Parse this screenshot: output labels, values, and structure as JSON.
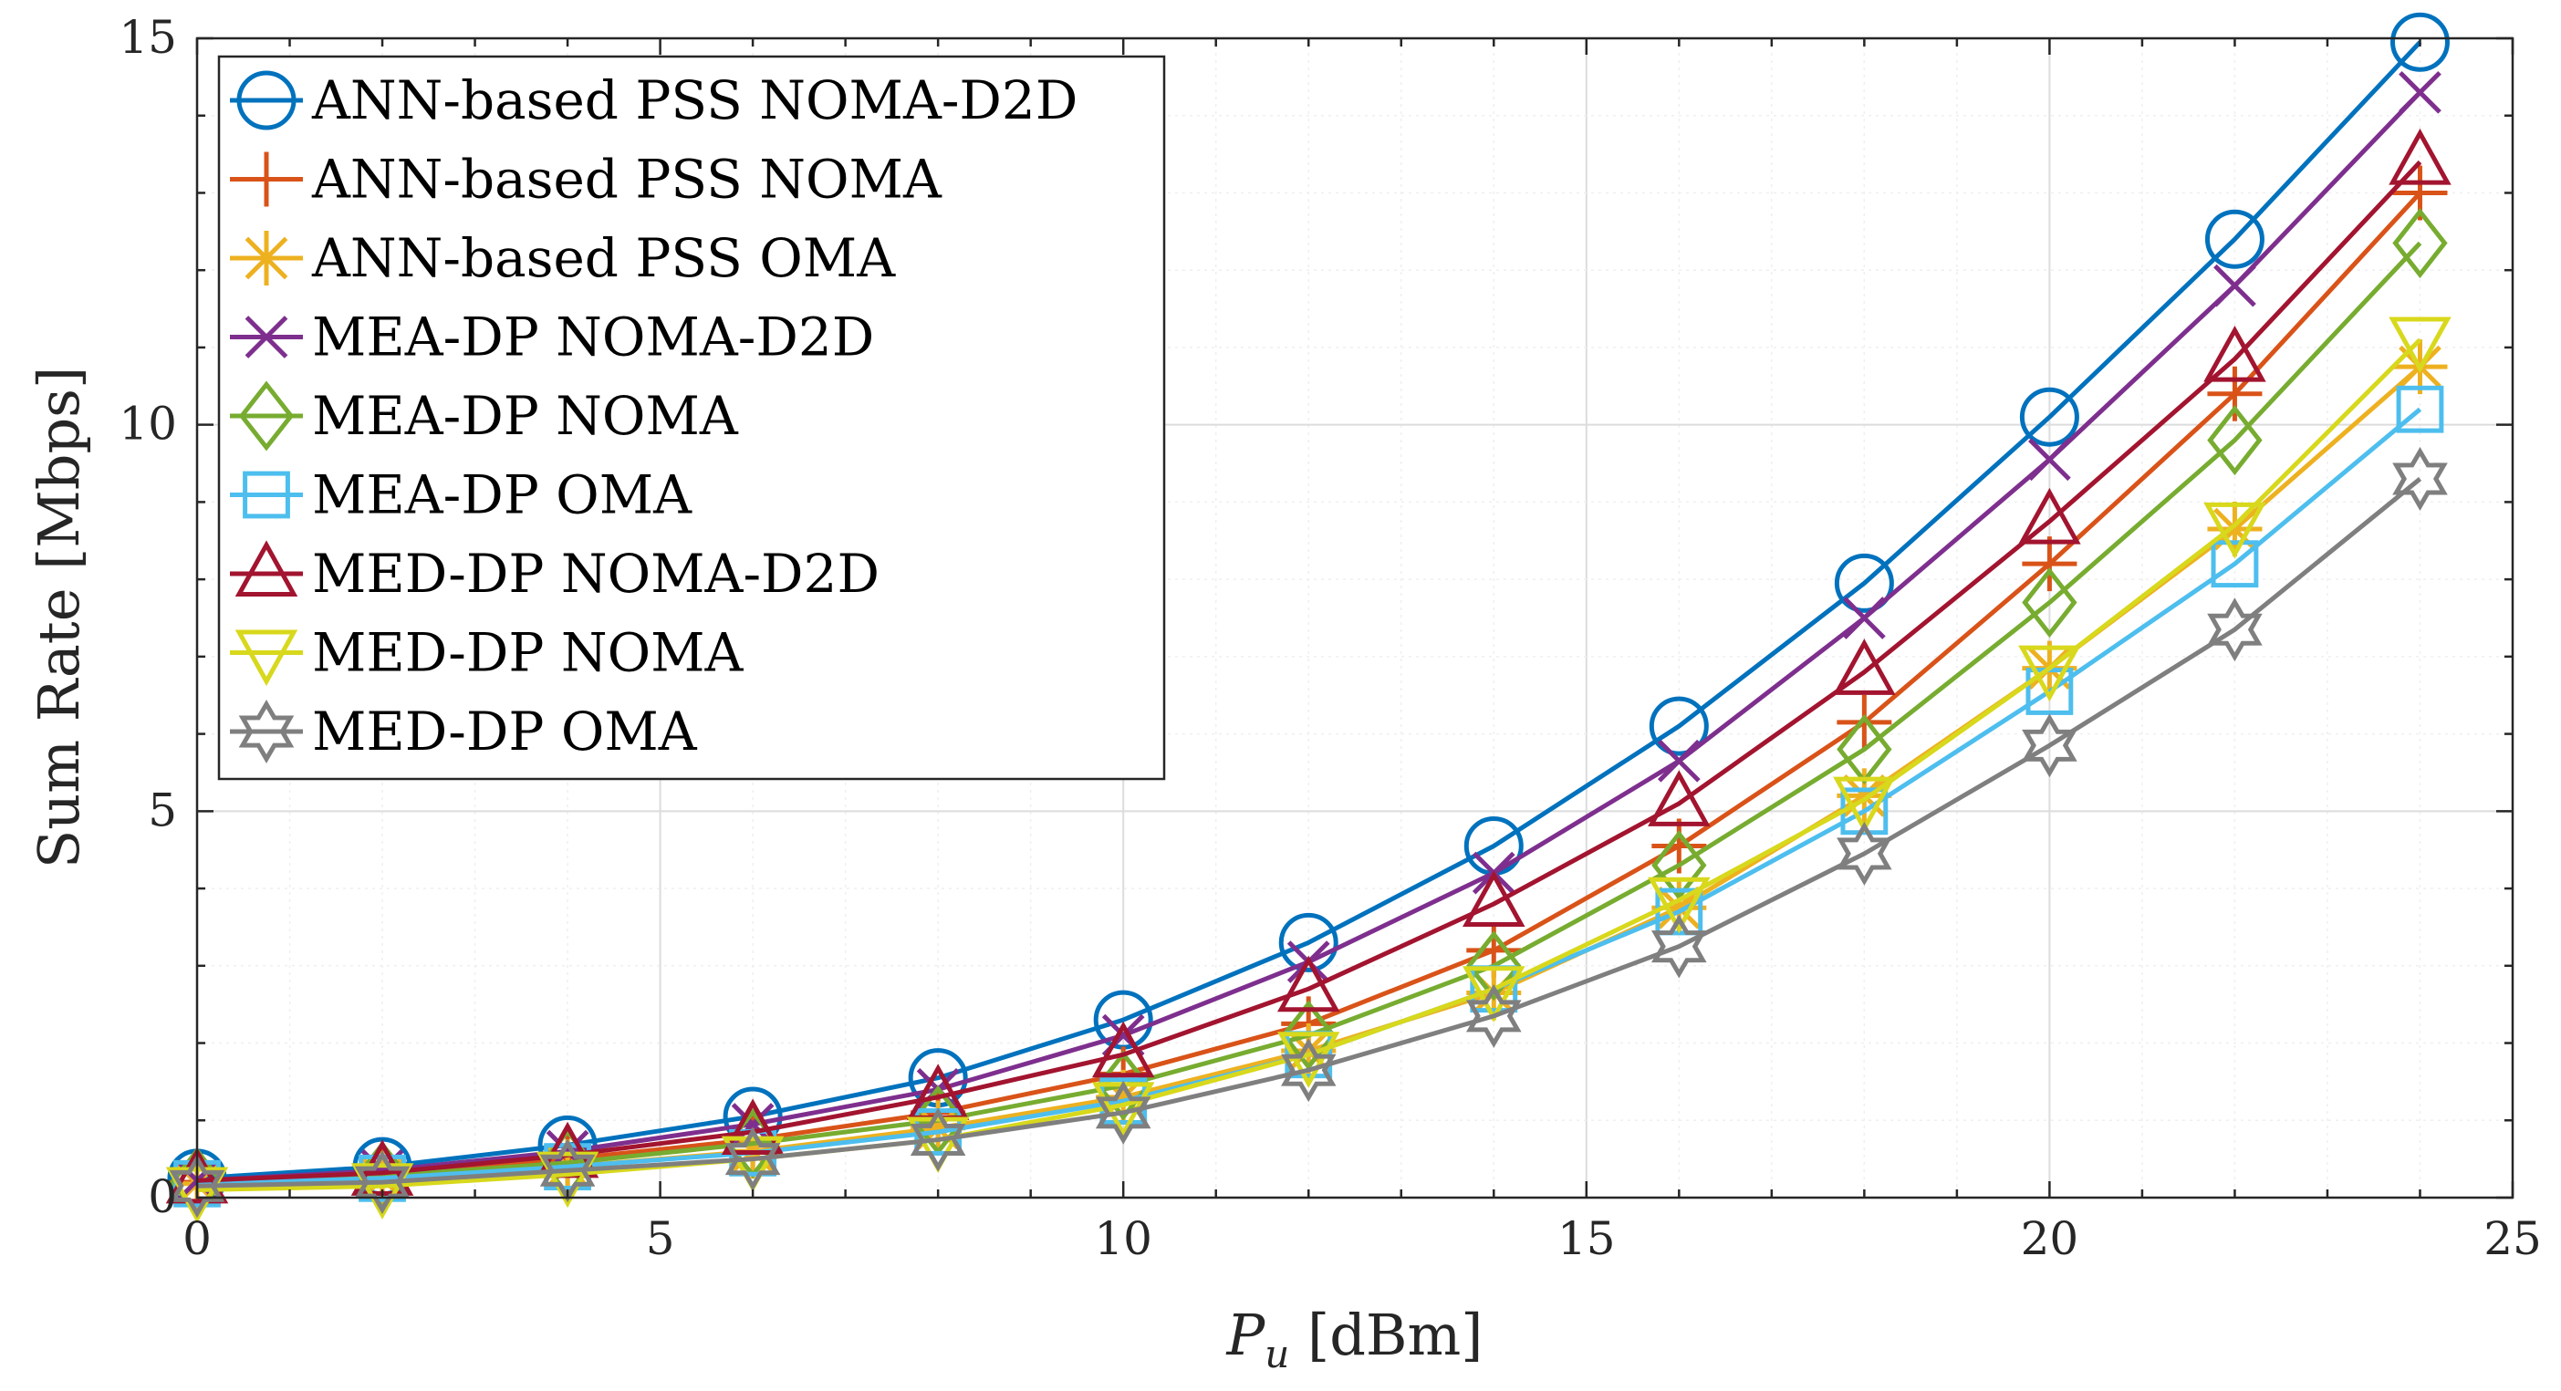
{
  "chart_data": {
    "type": "line",
    "x": [
      0,
      2,
      4,
      6,
      8,
      10,
      12,
      14,
      16,
      18,
      20,
      22,
      24
    ],
    "xlim": [
      0,
      25
    ],
    "ylim": [
      0,
      15
    ],
    "xticks": [
      "0",
      "5",
      "10",
      "15",
      "20",
      "25"
    ],
    "yticks": [
      "0",
      "5",
      "10",
      "15"
    ],
    "xlabel_var": "P",
    "xlabel_sub": "u",
    "xlabel_unit": " [dBm]",
    "ylabel": "Sum Rate [Mbps]",
    "grid": true,
    "legend_position": "top-left",
    "series": [
      {
        "name": "ANN-based PSS NOMA-D2D",
        "marker": "circle",
        "color": "#0072BD",
        "values": [
          0.25,
          0.4,
          0.68,
          1.05,
          1.55,
          2.3,
          3.3,
          4.55,
          6.1,
          7.95,
          10.1,
          12.4,
          14.95
        ]
      },
      {
        "name": "ANN-based PSS NOMA",
        "marker": "plus",
        "color": "#D95319",
        "values": [
          0.2,
          0.3,
          0.5,
          0.75,
          1.1,
          1.6,
          2.25,
          3.2,
          4.55,
          6.15,
          8.2,
          10.4,
          13.0
        ]
      },
      {
        "name": "ANN-based PSS OMA",
        "marker": "asterisk",
        "color": "#EDB120",
        "values": [
          0.18,
          0.25,
          0.4,
          0.6,
          0.9,
          1.3,
          1.9,
          2.65,
          3.75,
          5.2,
          6.85,
          8.65,
          10.75
        ]
      },
      {
        "name": "MEA-DP NOMA-D2D",
        "marker": "x",
        "color": "#7E2F8E",
        "values": [
          0.22,
          0.35,
          0.6,
          0.95,
          1.4,
          2.1,
          3.05,
          4.2,
          5.65,
          7.5,
          9.55,
          11.8,
          14.3
        ]
      },
      {
        "name": "MEA-DP NOMA",
        "marker": "diamond",
        "color": "#77AC30",
        "values": [
          0.2,
          0.28,
          0.45,
          0.7,
          1.0,
          1.45,
          2.1,
          3.0,
          4.3,
          5.8,
          7.7,
          9.8,
          12.35
        ]
      },
      {
        "name": "MEA-DP OMA",
        "marker": "square",
        "color": "#4DBEEE",
        "values": [
          0.18,
          0.25,
          0.4,
          0.58,
          0.85,
          1.25,
          1.85,
          2.7,
          3.7,
          5.0,
          6.55,
          8.2,
          10.2
        ]
      },
      {
        "name": "MED-DP NOMA-D2D",
        "marker": "triangle-up",
        "color": "#A2142F",
        "values": [
          0.22,
          0.32,
          0.55,
          0.85,
          1.3,
          1.85,
          2.7,
          3.8,
          5.1,
          6.8,
          8.75,
          10.85,
          13.4
        ]
      },
      {
        "name": "MED-DP NOMA",
        "marker": "triangle-down",
        "color": "#D8D81C",
        "values": [
          0.1,
          0.15,
          0.3,
          0.5,
          0.75,
          1.2,
          1.85,
          2.7,
          3.85,
          5.15,
          6.85,
          8.7,
          11.1
        ]
      },
      {
        "name": "MED-DP OMA",
        "marker": "hexagram",
        "color": "#7F7F7F",
        "values": [
          0.15,
          0.2,
          0.35,
          0.5,
          0.75,
          1.1,
          1.65,
          2.35,
          3.25,
          4.45,
          5.85,
          7.35,
          9.3
        ]
      }
    ]
  }
}
